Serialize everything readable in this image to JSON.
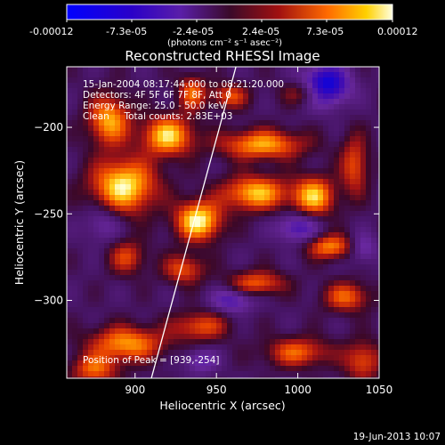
{
  "chart_data": {
    "type": "heatmap",
    "title": "Reconstructed RHESSI Image",
    "xlabel": "Heliocentric X (arcsec)",
    "ylabel": "Heliocentric Y (arcsec)",
    "xlim": [
      858,
      1050
    ],
    "ylim": [
      -345,
      -165
    ],
    "xticks": [
      900,
      950,
      1000,
      1050
    ],
    "yticks": [
      -200,
      -250,
      -300
    ],
    "colorbar": {
      "label": "(photons cm⁻² s⁻¹ asec⁻²)",
      "range": [
        -0.00012,
        0.00012
      ],
      "ticks": [
        "-0.00012",
        "-7.3e-05",
        "-2.4e-05",
        "2.4e-05",
        "7.3e-05",
        "0.00012"
      ]
    },
    "annotations": [
      "15-Jan-2004 08:17:44.000 to 08:21:20.000",
      "Detectors: 4F 5F 6F 7F 8F, Att 0",
      "Energy Range: 25.0 - 50.0 keV",
      "Clean     Total counts: 2.83E+03"
    ],
    "peak": {
      "label": "Position of Peak = [939,-254]",
      "x": 939,
      "y": -254
    },
    "blobs": [
      {
        "x": 939,
        "y": -254,
        "v": 1.0,
        "sx": 10,
        "sy": 8
      },
      {
        "x": 893,
        "y": -234,
        "v": 0.98,
        "sx": 14,
        "sy": 11
      },
      {
        "x": 920,
        "y": -205,
        "v": 0.9,
        "sx": 11,
        "sy": 8
      },
      {
        "x": 884,
        "y": -196,
        "v": 0.8,
        "sx": 9,
        "sy": 10
      },
      {
        "x": 978,
        "y": -210,
        "v": 0.78,
        "sx": 18,
        "sy": 6
      },
      {
        "x": 974,
        "y": -238,
        "v": 0.85,
        "sx": 14,
        "sy": 7
      },
      {
        "x": 1010,
        "y": -240,
        "v": 0.85,
        "sx": 9,
        "sy": 8
      },
      {
        "x": 1035,
        "y": -222,
        "v": 0.55,
        "sx": 6,
        "sy": 12
      },
      {
        "x": 1020,
        "y": -269,
        "v": 0.7,
        "sx": 10,
        "sy": 5
      },
      {
        "x": 935,
        "y": -180,
        "v": 0.6,
        "sx": 6,
        "sy": 7
      },
      {
        "x": 958,
        "y": -182,
        "v": 0.55,
        "sx": 8,
        "sy": 5
      },
      {
        "x": 1005,
        "y": -180,
        "v": 0.45,
        "sx": 10,
        "sy": 5
      },
      {
        "x": 895,
        "y": -275,
        "v": 0.5,
        "sx": 8,
        "sy": 7
      },
      {
        "x": 930,
        "y": -282,
        "v": 0.55,
        "sx": 9,
        "sy": 6
      },
      {
        "x": 975,
        "y": -290,
        "v": 0.6,
        "sx": 12,
        "sy": 5
      },
      {
        "x": 1030,
        "y": -298,
        "v": 0.6,
        "sx": 10,
        "sy": 6
      },
      {
        "x": 940,
        "y": -315,
        "v": 0.55,
        "sx": 12,
        "sy": 6
      },
      {
        "x": 895,
        "y": -325,
        "v": 0.75,
        "sx": 16,
        "sy": 7
      },
      {
        "x": 1000,
        "y": -330,
        "v": 0.6,
        "sx": 14,
        "sy": 6
      },
      {
        "x": 875,
        "y": -340,
        "v": 0.6,
        "sx": 10,
        "sy": 6
      },
      {
        "x": 1040,
        "y": -335,
        "v": 0.55,
        "sx": 8,
        "sy": 8
      },
      {
        "x": 1017,
        "y": -176,
        "v": -1.0,
        "sx": 10,
        "sy": 8
      },
      {
        "x": 1000,
        "y": -258,
        "v": -0.55,
        "sx": 9,
        "sy": 6
      },
      {
        "x": 960,
        "y": -300,
        "v": -0.5,
        "sx": 9,
        "sy": 5
      },
      {
        "x": 940,
        "y": -335,
        "v": -0.4,
        "sx": 7,
        "sy": 5
      },
      {
        "x": 880,
        "y": -255,
        "v": -0.35,
        "sx": 8,
        "sy": 8
      },
      {
        "x": 1040,
        "y": -270,
        "v": -0.4,
        "sx": 6,
        "sy": 6
      }
    ],
    "limb_line": [
      [
        910,
        -345
      ],
      [
        962,
        -165
      ]
    ]
  },
  "footer": {
    "timestamp": "19-Jun-2013 10:07"
  }
}
